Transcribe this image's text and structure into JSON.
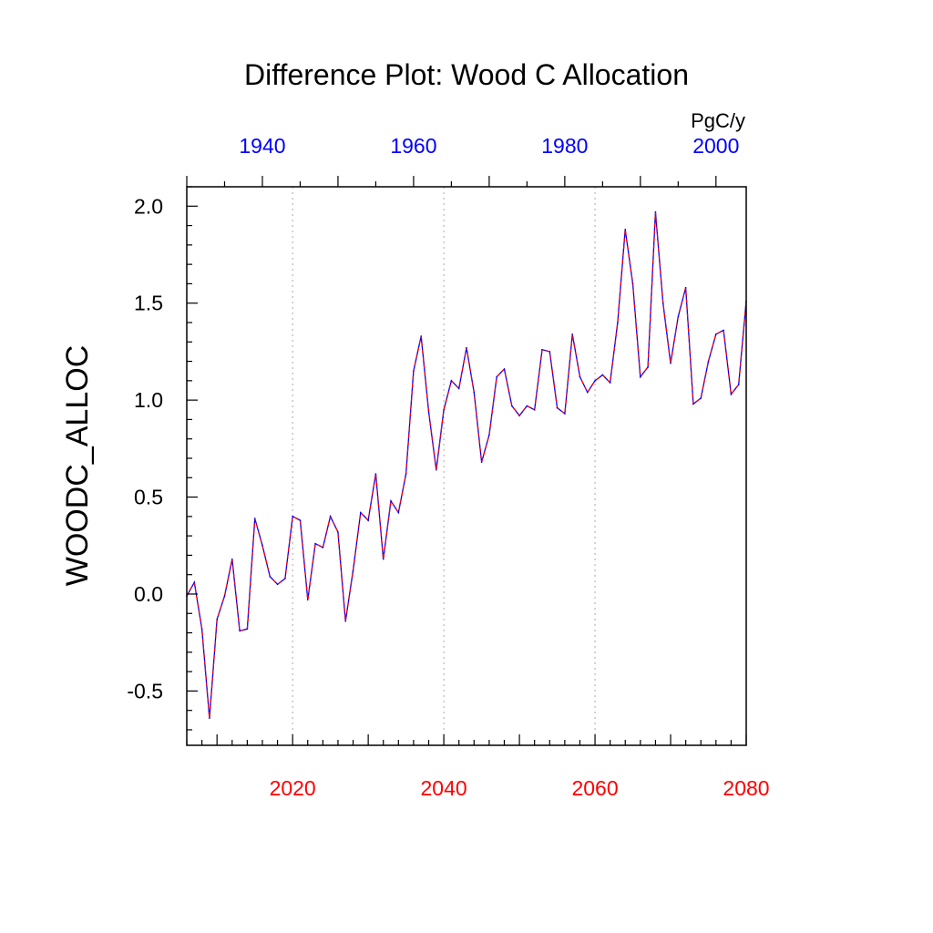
{
  "chart_data": {
    "type": "line",
    "title": "Difference Plot: Wood C Allocation",
    "units_label": "PgC/y",
    "ylabel": "WOODC_ALLOC",
    "xlabel": "",
    "ylim": [
      -0.78,
      2.1
    ],
    "y_ticks": [
      "-0.5",
      "0.0",
      "0.5",
      "1.0",
      "1.5",
      "2.0"
    ],
    "x_bottom": {
      "range": [
        2006,
        2080
      ],
      "ticks": [
        "2020",
        "2040",
        "2060",
        "2080"
      ],
      "color": "#ff0000"
    },
    "x_top": {
      "range": [
        1930,
        2004
      ],
      "ticks": [
        "1940",
        "1960",
        "1980",
        "2000"
      ],
      "color": "#0000ff"
    },
    "grid_x": [
      2020,
      2040,
      2060
    ],
    "series": [
      {
        "line_colors": [
          "#0000ff",
          "#ff0000"
        ],
        "x": [
          2006,
          2007,
          2008,
          2009,
          2010,
          2011,
          2012,
          2013,
          2014,
          2015,
          2016,
          2017,
          2018,
          2019,
          2020,
          2021,
          2022,
          2023,
          2024,
          2025,
          2026,
          2027,
          2028,
          2029,
          2030,
          2031,
          2032,
          2033,
          2034,
          2035,
          2036,
          2037,
          2038,
          2039,
          2040,
          2041,
          2042,
          2043,
          2044,
          2045,
          2046,
          2047,
          2048,
          2049,
          2050,
          2051,
          2052,
          2053,
          2054,
          2055,
          2056,
          2057,
          2058,
          2059,
          2060,
          2061,
          2062,
          2063,
          2064,
          2065,
          2066,
          2067,
          2068,
          2069,
          2070,
          2071,
          2072,
          2073,
          2074,
          2075,
          2076,
          2077,
          2078,
          2079,
          2080
        ],
        "y": [
          -0.01,
          0.06,
          -0.18,
          -0.64,
          -0.13,
          -0.01,
          0.18,
          -0.19,
          -0.18,
          0.39,
          0.25,
          0.09,
          0.05,
          0.08,
          0.4,
          0.38,
          -0.03,
          0.26,
          0.24,
          0.4,
          0.32,
          -0.14,
          0.12,
          0.42,
          0.38,
          0.62,
          0.18,
          0.48,
          0.42,
          0.62,
          1.15,
          1.33,
          0.94,
          0.64,
          0.95,
          1.1,
          1.06,
          1.27,
          1.04,
          0.68,
          0.82,
          1.12,
          1.16,
          0.97,
          0.92,
          0.97,
          0.95,
          1.26,
          1.25,
          0.96,
          0.93,
          1.34,
          1.12,
          1.04,
          1.1,
          1.13,
          1.09,
          1.4,
          1.88,
          1.6,
          1.12,
          1.17,
          1.97,
          1.5,
          1.19,
          1.43,
          1.58,
          0.98,
          1.01,
          1.2,
          1.34,
          1.36,
          1.03,
          1.08,
          1.51
        ]
      }
    ]
  }
}
